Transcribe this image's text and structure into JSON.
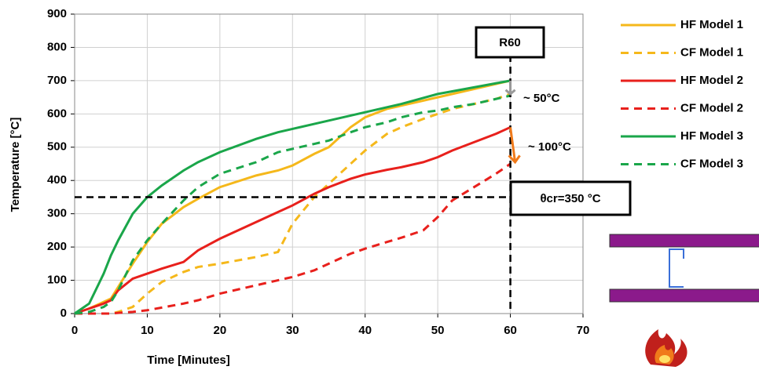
{
  "chart_data": {
    "type": "line",
    "x_label": "Time [Minutes]",
    "y_label": "Temperature [°C]",
    "x": [
      0,
      2,
      4,
      5,
      6,
      8,
      10,
      12,
      15,
      17,
      20,
      25,
      28,
      30,
      33,
      35,
      38,
      40,
      43,
      45,
      48,
      50,
      52,
      55,
      58,
      60
    ],
    "series": [
      {
        "name": "HF Model 1",
        "color": "#f5b81b",
        "dash": false,
        "values": [
          0,
          15,
          35,
          45,
          80,
          150,
          215,
          270,
          320,
          345,
          380,
          415,
          430,
          445,
          480,
          500,
          560,
          590,
          615,
          625,
          640,
          650,
          660,
          675,
          690,
          700
        ]
      },
      {
        "name": "CF Model 1",
        "color": "#f5b81b",
        "dash": true,
        "values": [
          0,
          0,
          0,
          0,
          5,
          20,
          60,
          95,
          125,
          140,
          150,
          170,
          185,
          270,
          350,
          390,
          450,
          490,
          540,
          560,
          585,
          600,
          615,
          630,
          645,
          660
        ]
      },
      {
        "name": "HF Model 2",
        "color": "#e8201c",
        "dash": false,
        "values": [
          0,
          15,
          30,
          40,
          70,
          105,
          120,
          135,
          155,
          190,
          225,
          275,
          305,
          325,
          360,
          380,
          405,
          418,
          432,
          440,
          455,
          470,
          490,
          515,
          540,
          560
        ]
      },
      {
        "name": "CF Model 2",
        "color": "#e8201c",
        "dash": true,
        "values": [
          0,
          0,
          0,
          0,
          2,
          5,
          10,
          18,
          30,
          40,
          60,
          85,
          100,
          110,
          130,
          150,
          180,
          195,
          215,
          228,
          250,
          290,
          340,
          380,
          420,
          450
        ]
      },
      {
        "name": "HF Model 3",
        "color": "#1aa64a",
        "dash": false,
        "values": [
          0,
          30,
          120,
          175,
          220,
          300,
          350,
          385,
          430,
          455,
          485,
          525,
          545,
          555,
          570,
          580,
          595,
          605,
          620,
          630,
          648,
          660,
          668,
          680,
          692,
          700
        ]
      },
      {
        "name": "CF Model 3",
        "color": "#1aa64a",
        "dash": true,
        "values": [
          0,
          5,
          20,
          35,
          70,
          160,
          220,
          270,
          340,
          380,
          420,
          455,
          485,
          495,
          510,
          520,
          545,
          560,
          575,
          590,
          605,
          610,
          620,
          630,
          645,
          655
        ]
      }
    ],
    "xlim": [
      0,
      70
    ],
    "xticks": [
      0,
      10,
      20,
      30,
      40,
      50,
      60,
      70
    ],
    "ylim": [
      0,
      900
    ],
    "yticks": [
      0,
      100,
      200,
      300,
      400,
      500,
      600,
      700,
      800,
      900
    ],
    "grid": true,
    "time_limit": 60,
    "time_limit_label": "R60",
    "critical_temp": 350,
    "critical_temp_label": "θcr=350 °C",
    "annotations": [
      {
        "text": "~ 50°C",
        "color": "#1aa64a"
      },
      {
        "text": "~ 100°C",
        "color": "#c0201c"
      }
    ]
  }
}
